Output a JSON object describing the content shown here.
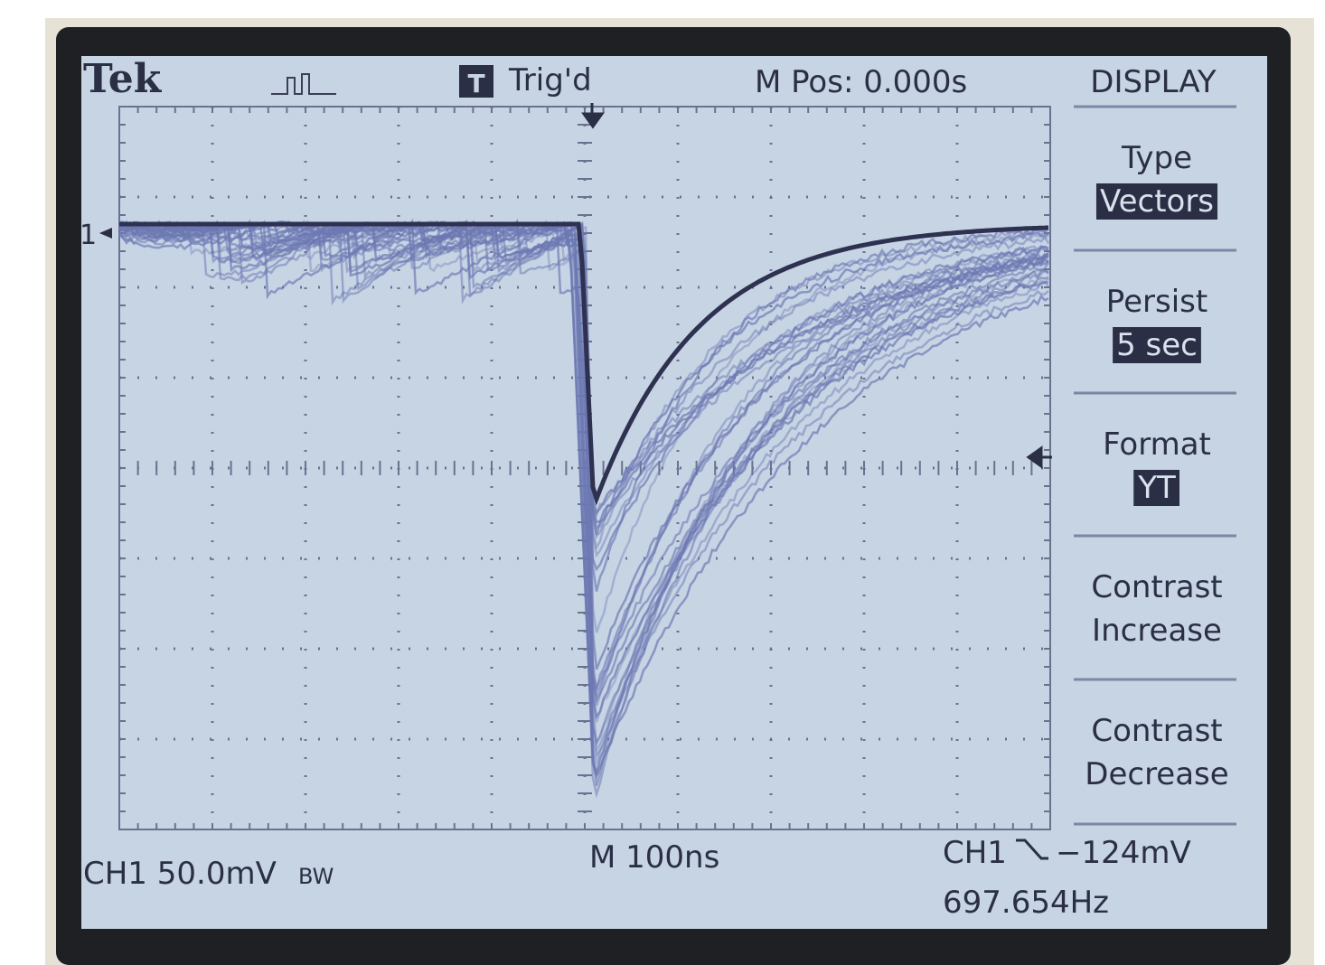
{
  "header": {
    "brand": "Tek",
    "trigger_icon": "T",
    "trigger_status": "Trig'd",
    "position": "M Pos: 0.000s"
  },
  "menu": {
    "title": "DISPLAY",
    "items": [
      {
        "label": [
          "Type"
        ],
        "value": "Vectors"
      },
      {
        "label": [
          "Persist"
        ],
        "value": "5 sec"
      },
      {
        "label": [
          "Format"
        ],
        "value": "YT"
      },
      {
        "label": [
          "Contrast",
          "Increase"
        ]
      },
      {
        "label": [
          "Contrast",
          "Decrease"
        ]
      }
    ]
  },
  "channel_marker": "1",
  "footer": {
    "channel_scale": "CH1  50.0mV",
    "bandwidth": "BW",
    "timebase": "M 100ns",
    "trigger_source": "CH1",
    "trigger_level": "−124mV",
    "frequency": "697.654Hz"
  }
}
